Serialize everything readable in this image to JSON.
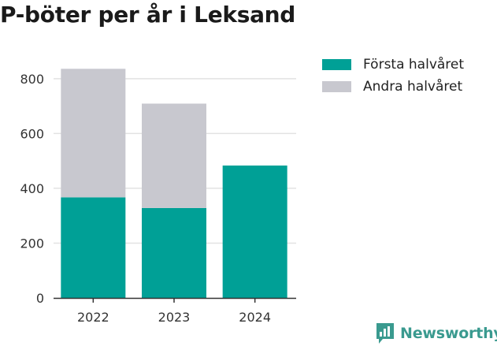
{
  "chart_data": {
    "type": "bar",
    "stacked": true,
    "title": "P-böter per år i Leksand",
    "categories": [
      "2022",
      "2023",
      "2024"
    ],
    "series": [
      {
        "name": "Första halvåret",
        "values": [
          367,
          328,
          483
        ],
        "color": "#00a096"
      },
      {
        "name": "Andra halvåret",
        "values": [
          469,
          381,
          0
        ],
        "color": "#c8c8cf"
      }
    ],
    "ylim": [
      0,
      880
    ],
    "yticks": [
      "0",
      "200",
      "400",
      "600",
      "800"
    ],
    "grid": true,
    "legend": "top-right"
  },
  "brand": {
    "name": "Newsworthy",
    "icon": "newsworthy-logo-icon",
    "color": "#3a9a8f"
  }
}
